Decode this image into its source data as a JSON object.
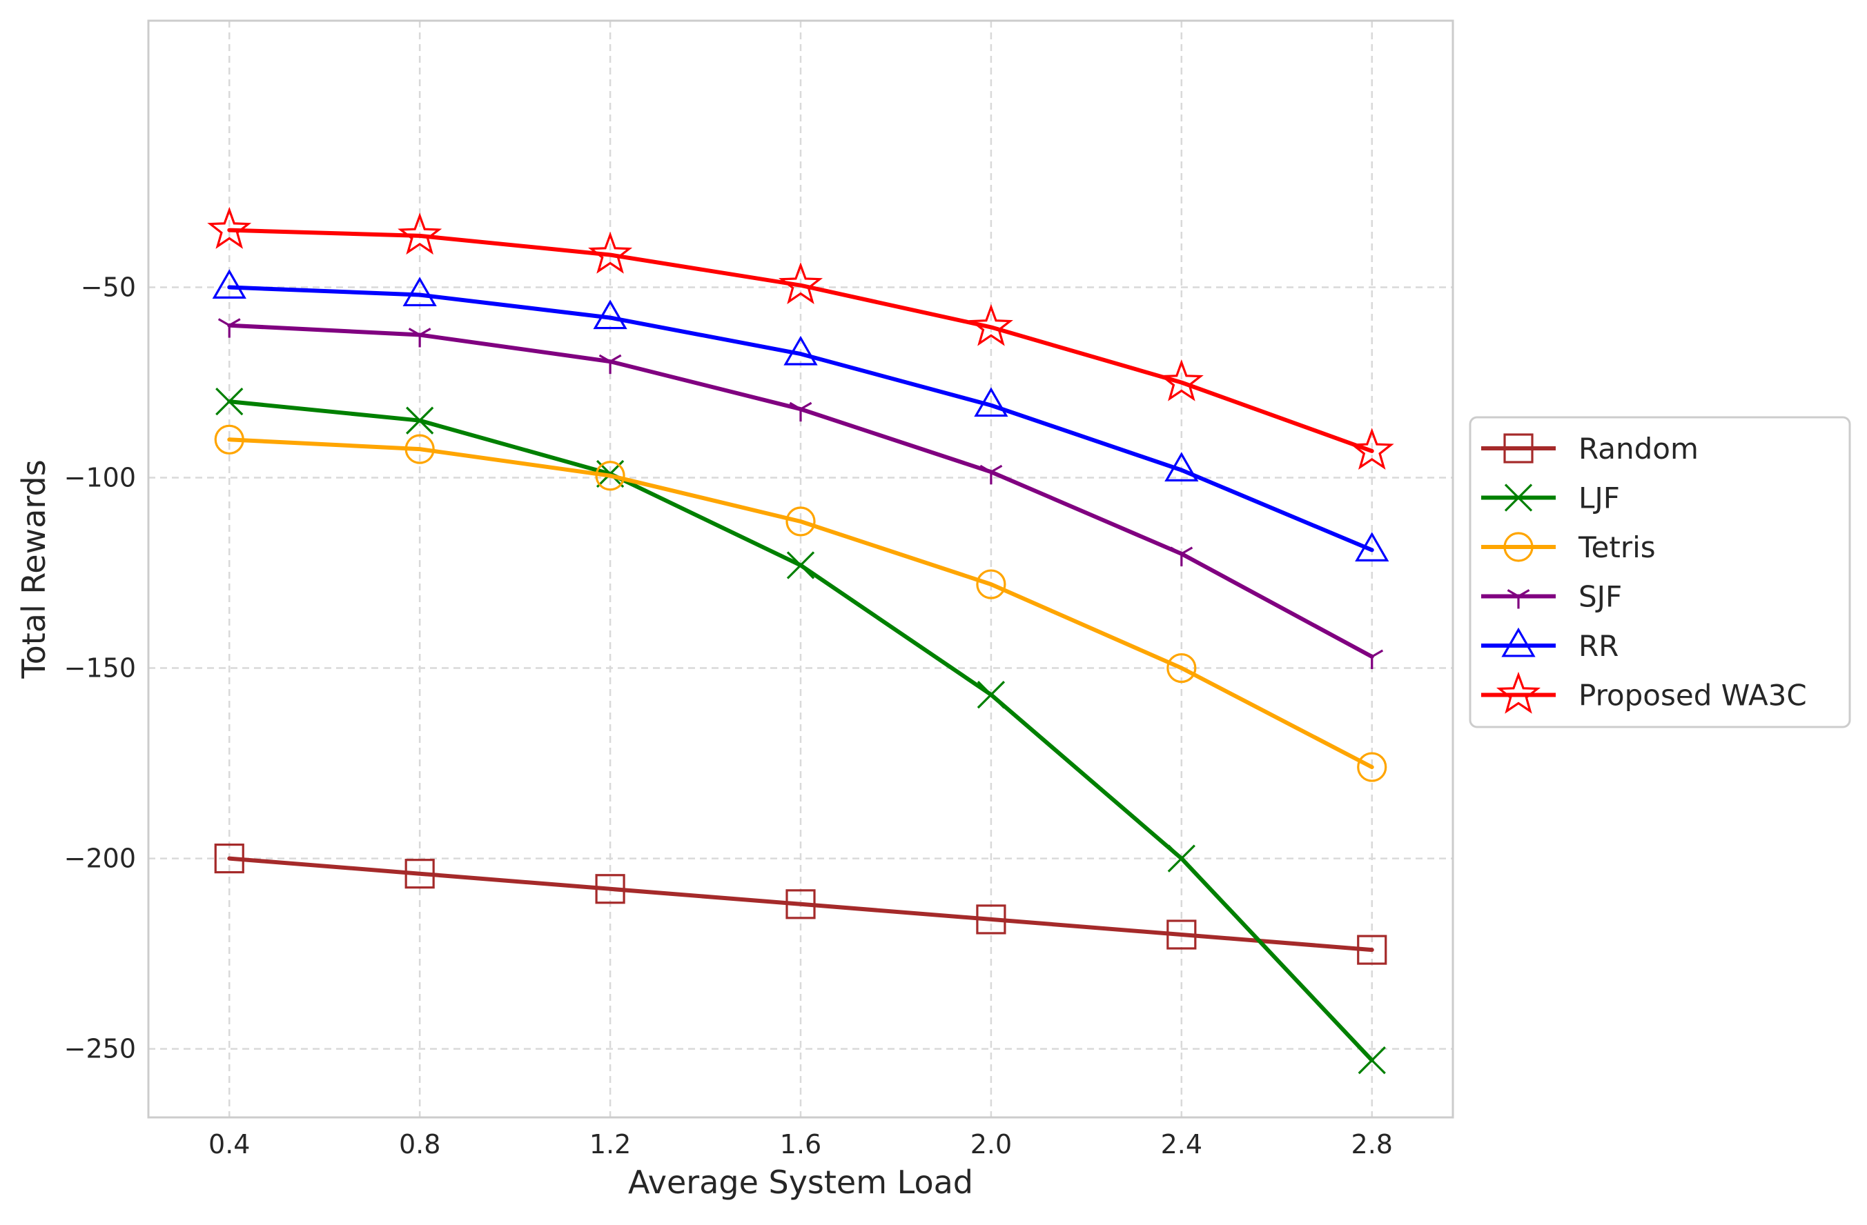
{
  "chart_data": {
    "type": "line",
    "title": "",
    "xlabel": "Average System Load",
    "ylabel": "Total Rewards",
    "x": [
      0.4,
      0.8,
      1.2,
      1.6,
      2.0,
      2.4,
      2.8
    ],
    "x_tick_labels": [
      "0.4",
      "0.8",
      "1.2",
      "1.6",
      "2.0",
      "2.4",
      "2.8"
    ],
    "xlim": [
      0.23,
      2.97
    ],
    "ylim": [
      -268,
      20
    ],
    "y_ticks": [
      -50,
      -100,
      -150,
      -200,
      -250
    ],
    "y_tick_labels": [
      "−50",
      "−100",
      "−150",
      "−200",
      "−250"
    ],
    "grid": true,
    "legend_position": "outside-right-center",
    "series": [
      {
        "name": "Random",
        "color": "#a52a2a",
        "marker": "square",
        "values": [
          -200,
          -204,
          -208,
          -212,
          -216,
          -220,
          -224
        ]
      },
      {
        "name": "LJF",
        "color": "#008000",
        "marker": "x",
        "values": [
          -80,
          -85,
          -99,
          -123,
          -157,
          -200,
          -253
        ]
      },
      {
        "name": "Tetris",
        "color": "#ffa500",
        "marker": "circle",
        "values": [
          -90,
          -92.5,
          -99.5,
          -111.5,
          -128,
          -150,
          -176
        ]
      },
      {
        "name": "SJF",
        "color": "#800080",
        "marker": "tri-down",
        "values": [
          -60,
          -62.5,
          -69.5,
          -82,
          -98.5,
          -120,
          -147
        ]
      },
      {
        "name": "RR",
        "color": "#0000ff",
        "marker": "triangle-up",
        "values": [
          -50,
          -52,
          -58,
          -67.5,
          -81,
          -98,
          -119
        ]
      },
      {
        "name": "Proposed WA3C",
        "color": "#ff0000",
        "marker": "star",
        "values": [
          -35,
          -36.5,
          -41.5,
          -49.5,
          -60.5,
          -75,
          -93
        ]
      }
    ]
  }
}
